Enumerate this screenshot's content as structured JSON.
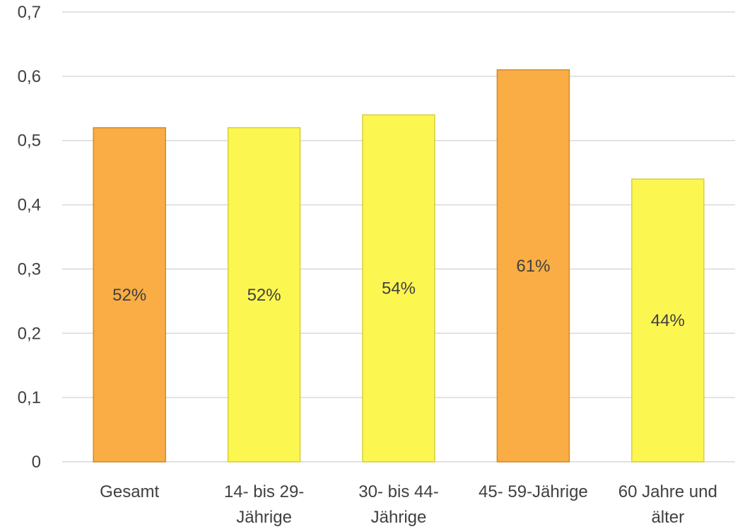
{
  "chart_data": {
    "type": "bar",
    "categories": [
      [
        "Gesamt"
      ],
      [
        "14- bis 29-",
        "Jährige"
      ],
      [
        "30- bis 44-",
        "Jährige"
      ],
      [
        "45- 59-Jährige"
      ],
      [
        "60 Jahre und",
        "älter"
      ]
    ],
    "values": [
      0.52,
      0.52,
      0.54,
      0.61,
      0.44
    ],
    "data_labels": [
      "52%",
      "52%",
      "54%",
      "61%",
      "44%"
    ],
    "bar_colors": [
      "#f9ad44",
      "#fcf651",
      "#fcf651",
      "#f9ad44",
      "#fcf651"
    ],
    "bar_edge_colors": [
      "#d18a2a",
      "#d6cf3e",
      "#d6cf3e",
      "#d18a2a",
      "#d6cf3e"
    ],
    "y_ticks": [
      "0",
      "0,1",
      "0,2",
      "0,3",
      "0,4",
      "0,5",
      "0,6",
      "0,7"
    ],
    "ylim": [
      0,
      0.7
    ],
    "grid": true,
    "legend": "none",
    "title": "",
    "xlabel": "",
    "ylabel": ""
  }
}
